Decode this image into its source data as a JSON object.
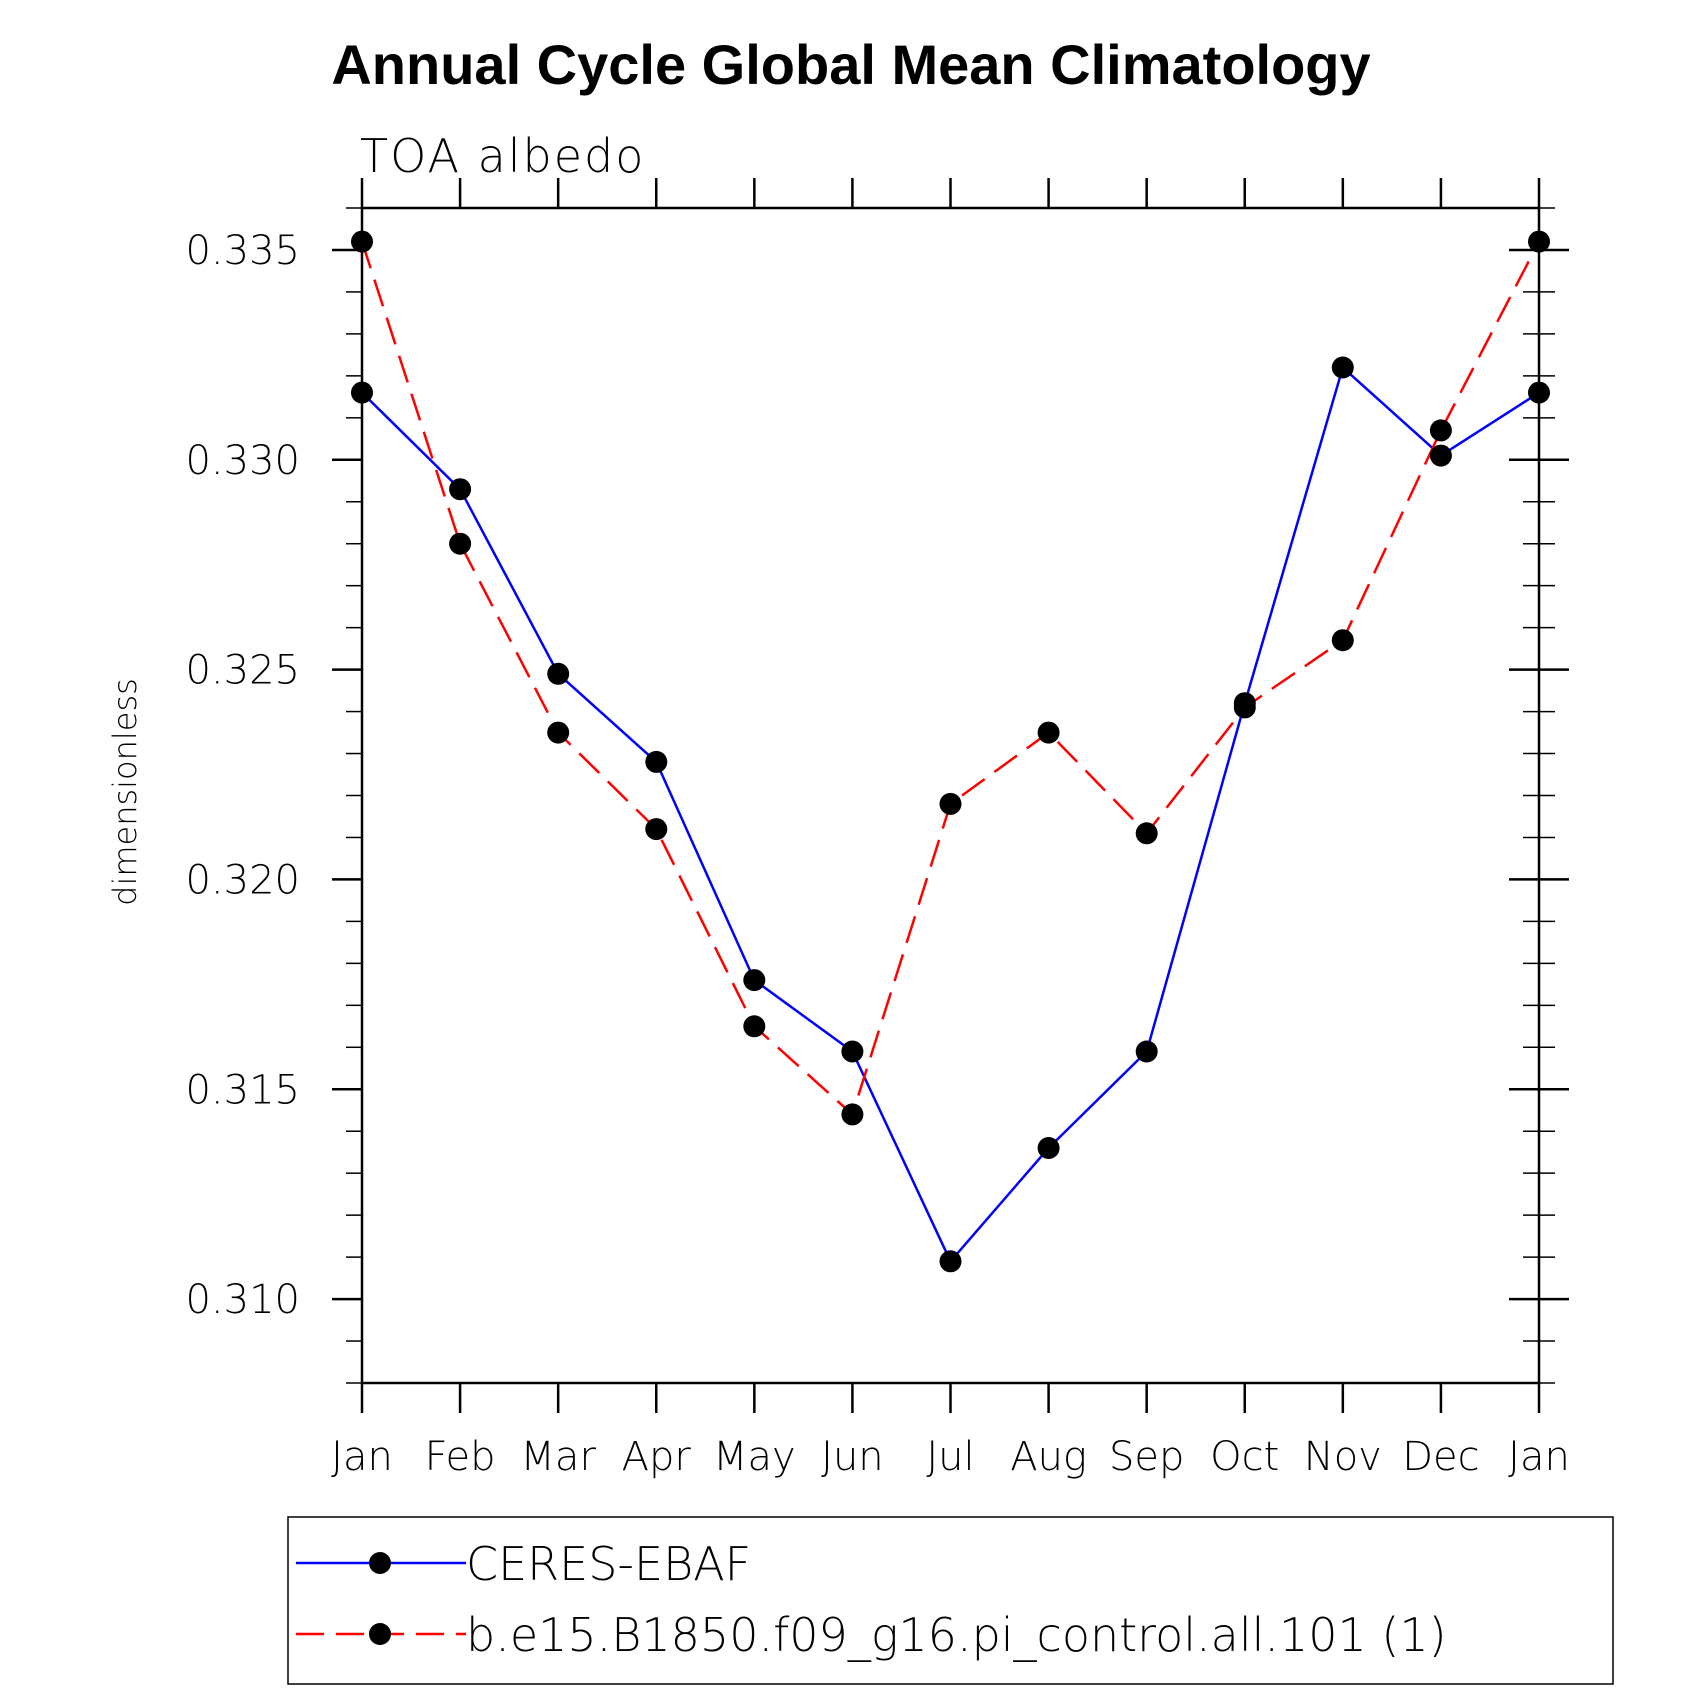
{
  "chart_data": {
    "type": "line",
    "title": "Annual Cycle Global Mean Climatology",
    "subtitle": "TOA albedo",
    "ylabel": "dimensionless",
    "xlabel": "",
    "categories": [
      "Jan",
      "Feb",
      "Mar",
      "Apr",
      "May",
      "Jun",
      "Jul",
      "Aug",
      "Sep",
      "Oct",
      "Nov",
      "Dec",
      "Jan"
    ],
    "ylim": [
      0.308,
      0.336
    ],
    "yticks": [
      "0.310",
      "0.315",
      "0.320",
      "0.325",
      "0.330",
      "0.335"
    ],
    "ytick_values": [
      0.31,
      0.315,
      0.32,
      0.325,
      0.33,
      0.335
    ],
    "grid": false,
    "legend_position": "bottom",
    "series": [
      {
        "name": "CERES-EBAF",
        "color": "#0000ff",
        "line_style": "solid",
        "marker": "circle",
        "values": [
          0.3316,
          0.3293,
          0.3249,
          0.3228,
          0.3176,
          0.3159,
          0.3109,
          0.3136,
          0.3159,
          0.3242,
          0.3322,
          0.3301,
          0.3316
        ]
      },
      {
        "name": "b.e15.B1850.f09_g16.pi_control.all.101 (1)",
        "color": "#ff0000",
        "line_style": "dashed",
        "marker": "circle",
        "values": [
          0.3352,
          0.328,
          0.3235,
          0.3212,
          0.3165,
          0.3144,
          0.3218,
          0.3235,
          0.3211,
          0.3241,
          0.3257,
          0.3307,
          0.3352
        ]
      }
    ]
  }
}
